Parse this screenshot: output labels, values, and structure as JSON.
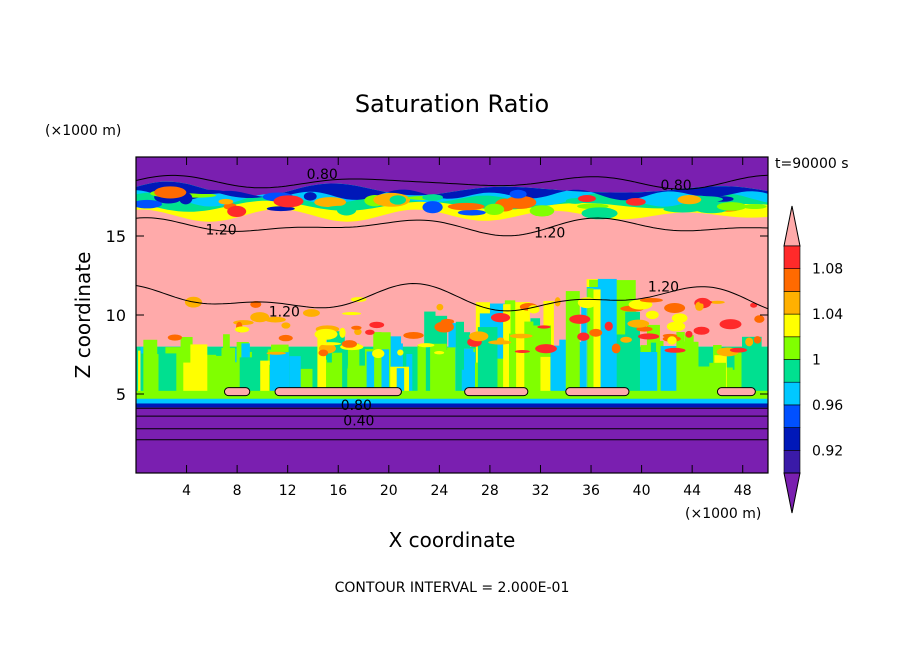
{
  "chart_data": {
    "type": "heatmap",
    "title": "Saturation Ratio",
    "xlabel": "X coordinate",
    "ylabel": "Z coordinate",
    "x_unit": "(×1000 m)",
    "y_unit": "(×1000 m)",
    "time_label": "t=90000 s",
    "footer": "CONTOUR INTERVAL = 2.000E-01",
    "xlim": [
      0,
      50
    ],
    "ylim": [
      0,
      20
    ],
    "x_ticks": [
      4,
      8,
      12,
      16,
      20,
      24,
      28,
      32,
      36,
      40,
      44,
      48
    ],
    "y_ticks": [
      5,
      10,
      15
    ],
    "colorbar": {
      "levels": [
        "below 0.90",
        "0.90–0.92",
        "0.92–0.94",
        "0.94–0.96",
        "0.96–0.98",
        "0.98–1.00",
        "1.00–1.02",
        "1.02–1.04",
        "1.04–1.06",
        "1.06–1.08",
        "1.08–1.10",
        "above 1.10"
      ],
      "colors": [
        "#7a1fb0",
        "#3a1aa8",
        "#0018b8",
        "#0050ff",
        "#00c8ff",
        "#00e090",
        "#80ff00",
        "#ffff00",
        "#ffb000",
        "#ff6a00",
        "#ff2a2a",
        "#ffaaaa"
      ],
      "tick_labels": [
        "0.92",
        "0.96",
        "1",
        "1.04",
        "1.08"
      ]
    },
    "layers": [
      {
        "z_range": [
          0,
          4.5
        ],
        "value": "below 0.90"
      },
      {
        "z_range": [
          4.5,
          8
        ],
        "value": "0.98–1.02"
      },
      {
        "z_range": [
          8,
          16.5
        ],
        "value": "above 1.10"
      },
      {
        "z_range": [
          16.5,
          18
        ],
        "value": "0.94–1.10"
      },
      {
        "z_range": [
          18,
          20
        ],
        "value": "below 0.90"
      }
    ],
    "contour_labels": [
      "0.80",
      "0.80",
      "1.20",
      "1.20",
      "1.20",
      "1.20",
      "0.80",
      "0.40"
    ]
  }
}
